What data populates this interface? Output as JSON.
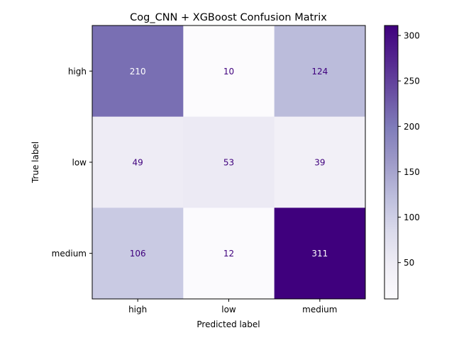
{
  "chart_data": {
    "type": "heatmap",
    "title": "Cog_CNN + XGBoost Confusion Matrix",
    "xlabel": "Predicted label",
    "ylabel": "True label",
    "x_categories": [
      "high",
      "low",
      "medium"
    ],
    "y_categories": [
      "high",
      "low",
      "medium"
    ],
    "matrix": [
      [
        210,
        10,
        124
      ],
      [
        49,
        53,
        39
      ],
      [
        106,
        12,
        311
      ]
    ],
    "colormap": "Purples",
    "colorbar": {
      "min": 10,
      "max": 311,
      "ticks": [
        50,
        100,
        150,
        200,
        250,
        300
      ]
    },
    "text_colors": {
      "light": "#ffffff",
      "dark": "#3f007d"
    },
    "grid": false
  }
}
